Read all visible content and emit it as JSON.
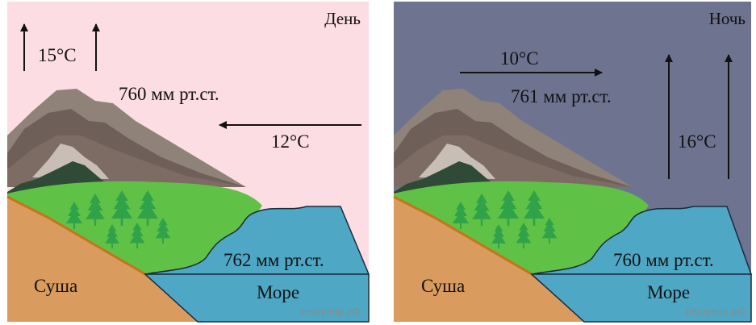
{
  "panels": {
    "day": {
      "title": "День",
      "temp_up": "15°C",
      "pressure_land": "760 мм рт.ст.",
      "temp_wind": "12°C",
      "pressure_sea": "762 мм рт.ст.",
      "label_land": "Суша",
      "label_sea": "Море",
      "watermark": "решувпр.рф",
      "sky_color": "#fcdde3"
    },
    "night": {
      "title": "Ночь",
      "temp_wind": "10°C",
      "pressure_land": "761 мм рт.ст.",
      "temp_up": "16°C",
      "pressure_sea": "760 мм рт.ст.",
      "label_land": "Суша",
      "label_sea": "Море",
      "watermark": "решувпр.рф",
      "sky_color": "#6e7490"
    }
  }
}
